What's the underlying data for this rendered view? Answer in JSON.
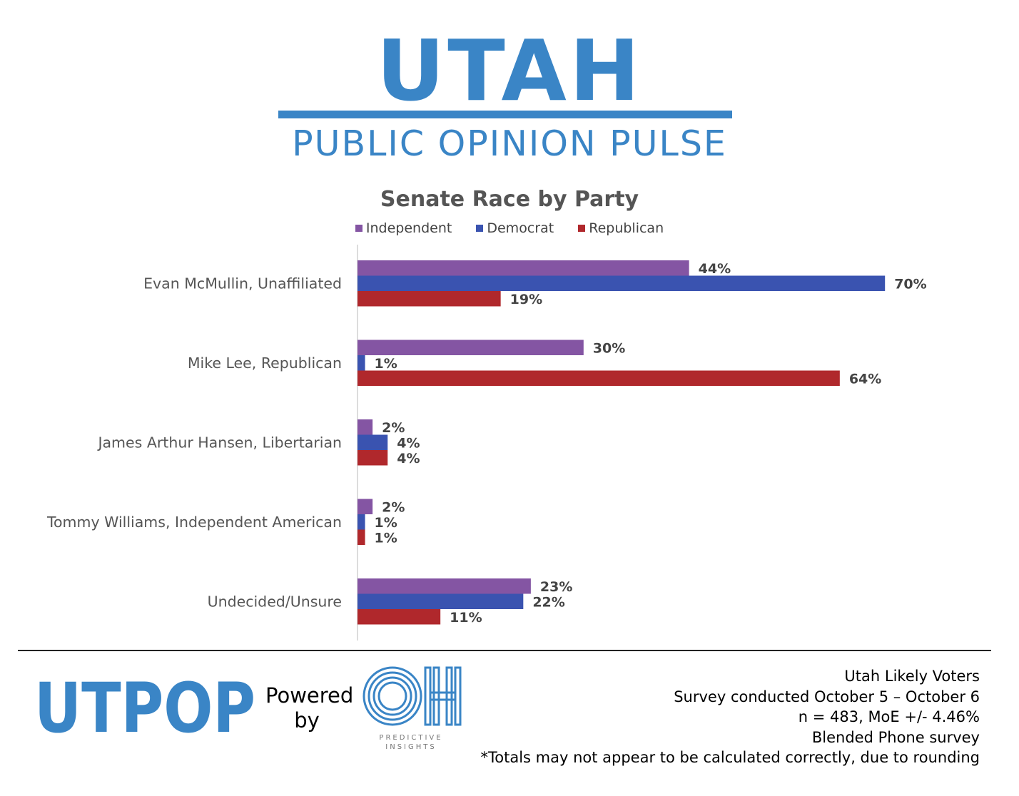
{
  "header": {
    "title": "UTAH",
    "subtitle": "PUBLIC OPINION PULSE"
  },
  "colors": {
    "brand_blue": "#3a85c6",
    "independent": "#8455a3",
    "democrat": "#3a53b0",
    "republican": "#b0282c"
  },
  "chart_data": {
    "type": "bar",
    "orientation": "horizontal",
    "title": "Senate Race by Party",
    "categories": [
      "Evan McMullin, Unaffiliated",
      "Mike Lee, Republican",
      "James Arthur Hansen, Libertarian",
      "Tommy Williams, Independent American",
      "Undecided/Unsure"
    ],
    "series": [
      {
        "name": "Independent",
        "color": "#8455a3",
        "values": [
          44,
          30,
          2,
          2,
          23
        ],
        "labels": [
          "44%",
          "30%",
          "2%",
          "2%",
          "23%"
        ]
      },
      {
        "name": "Democrat",
        "color": "#3a53b0",
        "values": [
          70,
          1,
          4,
          1,
          22
        ],
        "labels": [
          "70%",
          "1%",
          "4%",
          "1%",
          "22%"
        ]
      },
      {
        "name": "Republican",
        "color": "#b0282c",
        "values": [
          19,
          64,
          4,
          1,
          11
        ],
        "labels": [
          "19%",
          "64%",
          "4%",
          "1%",
          "11%"
        ]
      }
    ],
    "value_unit": "%",
    "legend_position": "top",
    "grid": false
  },
  "footer": {
    "logo_text": "UTPOP",
    "powered_line1": "Powered",
    "powered_line2": "by",
    "partner_logo": "OH",
    "partner_caption_1": "PREDICTIVE",
    "partner_caption_2": "INSIGHTS",
    "notes": [
      "Utah Likely Voters",
      "Survey conducted October 5 – October 6",
      "n = 483, MoE +/- 4.46%",
      "Blended Phone survey",
      "*Totals may not appear to be calculated correctly, due to rounding"
    ]
  }
}
